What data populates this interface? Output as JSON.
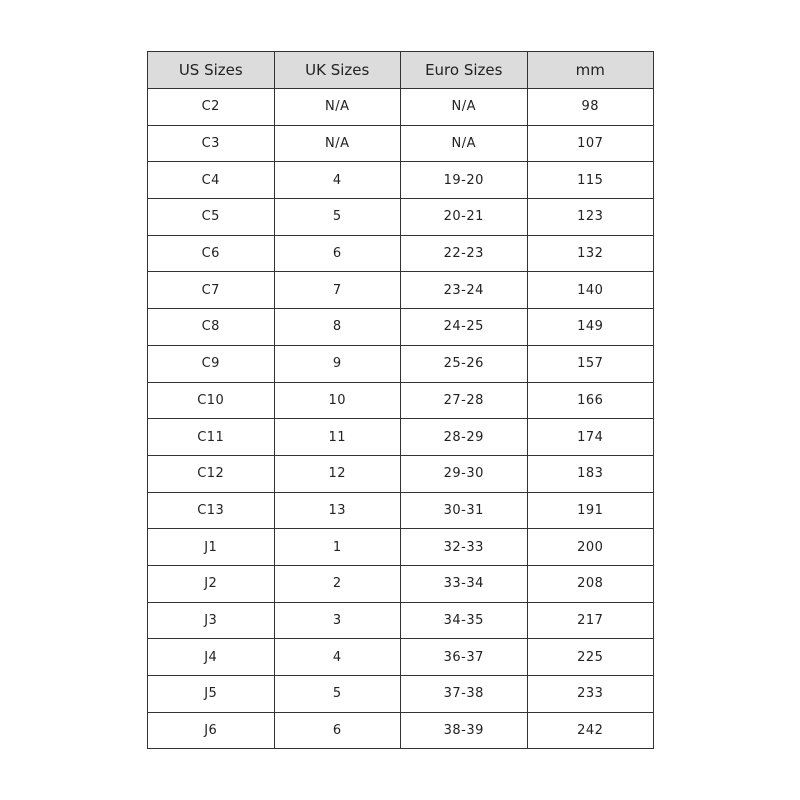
{
  "table": {
    "headers": [
      "US Sizes",
      "UK Sizes",
      "Euro Sizes",
      "mm"
    ],
    "rows": [
      [
        "C2",
        "N/A",
        "N/A",
        "98"
      ],
      [
        "C3",
        "N/A",
        "N/A",
        "107"
      ],
      [
        "C4",
        "4",
        "19-20",
        "115"
      ],
      [
        "C5",
        "5",
        "20-21",
        "123"
      ],
      [
        "C6",
        "6",
        "22-23",
        "132"
      ],
      [
        "C7",
        "7",
        "23-24",
        "140"
      ],
      [
        "C8",
        "8",
        "24-25",
        "149"
      ],
      [
        "C9",
        "9",
        "25-26",
        "157"
      ],
      [
        "C10",
        "10",
        "27-28",
        "166"
      ],
      [
        "C11",
        "11",
        "28-29",
        "174"
      ],
      [
        "C12",
        "12",
        "29-30",
        "183"
      ],
      [
        "C13",
        "13",
        "30-31",
        "191"
      ],
      [
        "J1",
        "1",
        "32-33",
        "200"
      ],
      [
        "J2",
        "2",
        "33-34",
        "208"
      ],
      [
        "J3",
        "3",
        "34-35",
        "217"
      ],
      [
        "J4",
        "4",
        "36-37",
        "225"
      ],
      [
        "J5",
        "5",
        "37-38",
        "233"
      ],
      [
        "J6",
        "6",
        "38-39",
        "242"
      ]
    ],
    "header_bg": "#dcdcdc"
  }
}
